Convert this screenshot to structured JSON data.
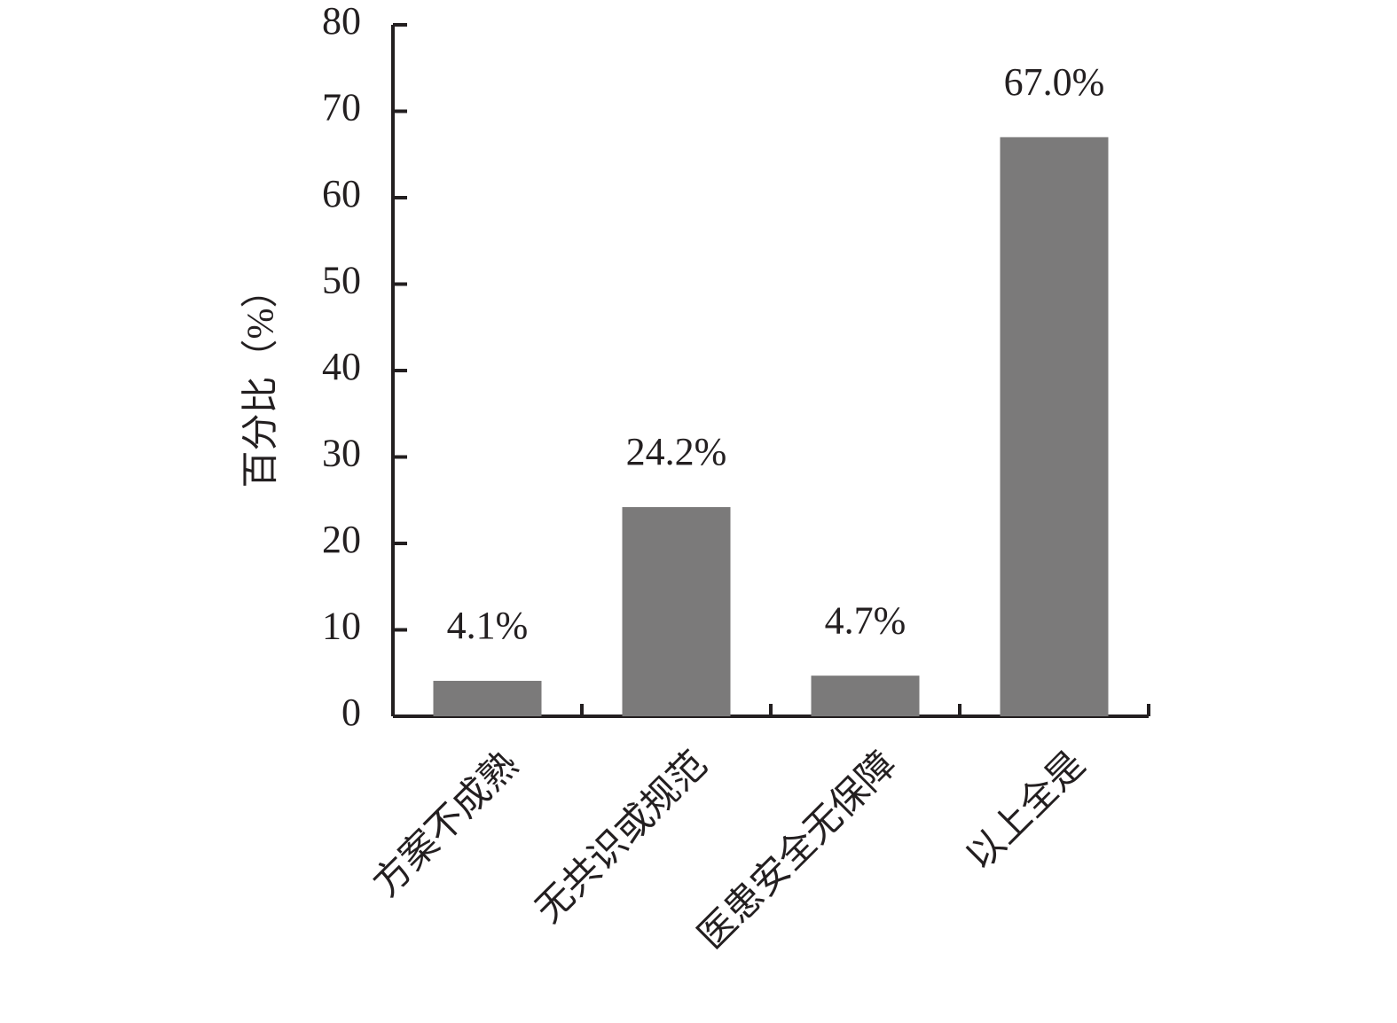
{
  "chart_data": {
    "type": "bar",
    "y_label": "百分比（%）",
    "categories": [
      "方案不成熟",
      "无共识或规范",
      "医患安全无保障",
      "以上全是"
    ],
    "values": [
      4.1,
      24.2,
      4.7,
      67.0
    ],
    "value_labels": [
      "4.1%",
      "24.2%",
      "4.7%",
      "67.0%"
    ],
    "color": "#7b7a7a",
    "ylim": [
      0,
      80
    ],
    "yticks": [
      0,
      10,
      20,
      30,
      40,
      50,
      60,
      70,
      80
    ],
    "grid": false
  }
}
